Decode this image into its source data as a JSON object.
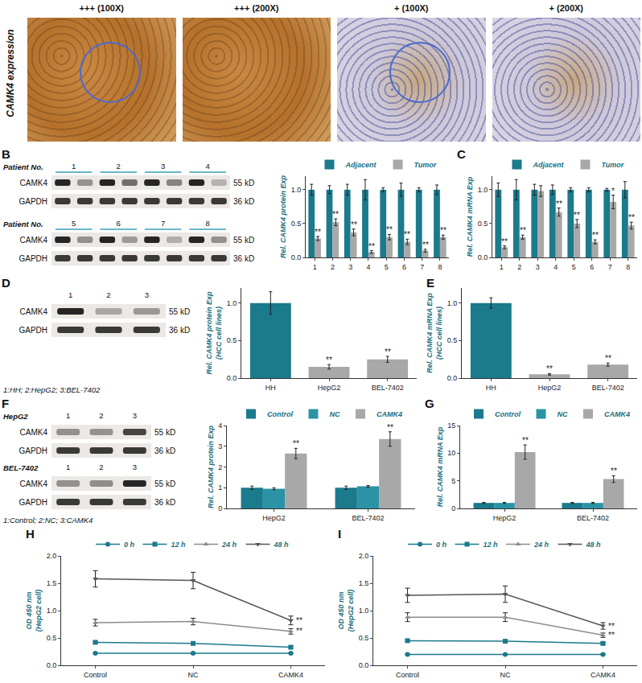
{
  "images": {
    "label": "CAMK4 expression",
    "titles": [
      "+++ (100X)",
      "+++ (200X)",
      "+ (100X)",
      "+ (200X)"
    ]
  },
  "blots": [
    {
      "panel": "B",
      "paired": true,
      "sets": [
        {
          "name": "Patient No.",
          "lanes": [
            "1",
            "2",
            "3",
            "4"
          ]
        },
        {
          "name": "Patient No.",
          "lanes": [
            "5",
            "6",
            "7",
            "8"
          ]
        }
      ],
      "rows": [
        {
          "label": "CAMK4",
          "size": "55 kD"
        },
        {
          "label": "GAPDH",
          "size": "36 kD"
        }
      ]
    },
    {
      "panel": "D",
      "sets": [
        {
          "lanes": [
            "1",
            "2",
            "3"
          ]
        }
      ],
      "rows": [
        {
          "label": "CAMK4",
          "size": "55 kD"
        },
        {
          "label": "GAPDH",
          "size": "36 kD"
        }
      ],
      "note": "1:HH; 2:HepG2; 3:BEL-7402"
    },
    {
      "panel": "F",
      "sets": [
        {
          "name": "HepG2",
          "lanes": [
            "1",
            "2",
            "3"
          ]
        },
        {
          "name": "BEL-7402",
          "lanes": [
            "1",
            "2",
            "3"
          ]
        }
      ],
      "rows": [
        {
          "label": "CAMK4",
          "size": "55 kD"
        },
        {
          "label": "GAPDH",
          "size": "36 kD"
        }
      ],
      "note": "1:Control; 2:NC; 3:CAMK4"
    }
  ],
  "chart_data": [
    {
      "panel": "B",
      "type": "bar",
      "y_label": "Rel. CAMK4 protein Exp",
      "categories": [
        "1",
        "2",
        "3",
        "4",
        "5",
        "6",
        "7",
        "8"
      ],
      "series": [
        {
          "name": "Adjacent",
          "color": "#1b7a8c",
          "values": [
            1,
            1,
            1,
            1,
            1,
            1,
            1,
            1
          ],
          "errors": [
            0.08,
            0.06,
            0.08,
            0.15,
            0.03,
            0.1,
            0.03,
            0.07
          ]
        },
        {
          "name": "Tumor",
          "color": "#a8a8a8",
          "values": [
            0.28,
            0.52,
            0.37,
            0.08,
            0.3,
            0.23,
            0.1,
            0.3
          ],
          "errors": [
            0.03,
            0.05,
            0.05,
            0.02,
            0.04,
            0.04,
            0.02,
            0.03
          ],
          "significance": [
            "**",
            "**",
            "**",
            "**",
            "**",
            "**",
            "**",
            "**"
          ]
        }
      ],
      "ylim": [
        0,
        1.2
      ],
      "yticks": [
        {
          "value": 0,
          "label": "0.0"
        },
        {
          "value": 0.5,
          "label": "0.5"
        },
        {
          "value": 1,
          "label": "1.0"
        }
      ],
      "legend": "top"
    },
    {
      "panel": "C",
      "type": "bar",
      "y_label": "Rel. CAMK4 mRNA Exp",
      "categories": [
        "1",
        "2",
        "3",
        "4",
        "5",
        "6",
        "7",
        "8"
      ],
      "series": [
        {
          "name": "Adjacent",
          "color": "#1b7a8c",
          "values": [
            1,
            1,
            1,
            1,
            1,
            1,
            1,
            1
          ],
          "errors": [
            0.1,
            0.15,
            0.08,
            0.07,
            0.03,
            0.03,
            0.02,
            0.12
          ]
        },
        {
          "name": "Tumor",
          "color": "#a8a8a8",
          "values": [
            0.15,
            0.3,
            0.98,
            0.67,
            0.5,
            0.23,
            0.82,
            0.47
          ],
          "errors": [
            0.02,
            0.03,
            0.08,
            0.06,
            0.06,
            0.03,
            0.1,
            0.05
          ],
          "significance": [
            "**",
            "**",
            null,
            "**",
            "**",
            "**",
            "*",
            "**"
          ]
        }
      ],
      "ylim": [
        0,
        1.2
      ],
      "yticks": [
        {
          "value": 0,
          "label": "0.0"
        },
        {
          "value": 0.5,
          "label": "0.5"
        },
        {
          "value": 1,
          "label": "1.0"
        }
      ],
      "legend": "top"
    },
    {
      "panel": "D",
      "type": "bar",
      "y_label": "Rel. CAMK4 protein Exp\n(HCC cell lines)",
      "categories": [
        "HH",
        "HepG2",
        "BEL-7402"
      ],
      "values": [
        1,
        0.15,
        0.25
      ],
      "errors": [
        0.15,
        0.03,
        0.04
      ],
      "colors": [
        "#1b7a8c",
        "#a8a8a8",
        "#a8a8a8"
      ],
      "significance": [
        null,
        "**",
        "**"
      ],
      "ylim": [
        0,
        1.2
      ],
      "yticks": [
        {
          "value": 0,
          "label": "0.0"
        },
        {
          "value": 0.5,
          "label": "0.5"
        },
        {
          "value": 1,
          "label": "1.0"
        }
      ]
    },
    {
      "panel": "E",
      "type": "bar",
      "y_label": "Rel. CAMK4 mRNA Exp\n(HCC cell lines)",
      "categories": [
        "HH",
        "HepG2",
        "BEL-7402"
      ],
      "values": [
        1,
        0.05,
        0.18
      ],
      "errors": [
        0.07,
        0.01,
        0.02
      ],
      "colors": [
        "#1b7a8c",
        "#a8a8a8",
        "#a8a8a8"
      ],
      "significance": [
        null,
        "**",
        "**"
      ],
      "ylim": [
        0,
        1.2
      ],
      "yticks": [
        {
          "value": 0,
          "label": "0.0"
        },
        {
          "value": 0.5,
          "label": "0.5"
        },
        {
          "value": 1,
          "label": "1.0"
        }
      ]
    },
    {
      "panel": "F",
      "type": "bar",
      "y_label": "Rel. CAMK4 protein Exp",
      "categories": [
        "HepG2",
        "BEL-7402"
      ],
      "series": [
        {
          "name": "Control",
          "color": "#1b7a8c",
          "values": [
            1,
            1
          ],
          "errors": [
            0.08,
            0.08
          ]
        },
        {
          "name": "NC",
          "color": "#2b93a5",
          "values": [
            0.95,
            1.07
          ],
          "errors": [
            0.05,
            0.04
          ]
        },
        {
          "name": "CAMK4",
          "color": "#a8a8a8",
          "values": [
            2.65,
            3.35
          ],
          "errors": [
            0.25,
            0.35
          ],
          "significance": [
            "**",
            "**"
          ]
        }
      ],
      "ylim": [
        0,
        4
      ],
      "yticks": [
        0,
        1,
        2,
        3,
        4
      ],
      "legend": "top"
    },
    {
      "panel": "G",
      "type": "bar",
      "y_label": "Rel. CAMK4 mRNA Exp",
      "categories": [
        "HepG2",
        "BEL-7402"
      ],
      "series": [
        {
          "name": "Control",
          "color": "#1b7a8c",
          "values": [
            1,
            1
          ],
          "errors": [
            0.1,
            0.1
          ]
        },
        {
          "name": "NC",
          "color": "#2b93a5",
          "values": [
            1,
            1
          ],
          "errors": [
            0.1,
            0.1
          ]
        },
        {
          "name": "CAMK4",
          "color": "#a8a8a8",
          "values": [
            10.2,
            5.3
          ],
          "errors": [
            1.3,
            0.6
          ],
          "significance": [
            "**",
            "**"
          ]
        }
      ],
      "ylim": [
        0,
        15
      ],
      "yticks": [
        0,
        5,
        10,
        15
      ],
      "legend": "top"
    },
    {
      "panel": "H",
      "type": "line",
      "y_label": "OD 450 nm\n(HepG2 cell)",
      "categories": [
        "Control",
        "NC",
        "CAMK4"
      ],
      "series": [
        {
          "name": "0 h",
          "color": "#1b7a8c",
          "marker": "circle",
          "values": [
            0.22,
            0.22,
            0.22
          ],
          "errors": [
            0.01,
            0.01,
            0.01
          ]
        },
        {
          "name": "12 h",
          "color": "#1b7a8c",
          "marker": "square",
          "values": [
            0.42,
            0.4,
            0.33
          ],
          "errors": [
            0.02,
            0.02,
            0.02
          ]
        },
        {
          "name": "24 h",
          "color": "#8c8c8c",
          "marker": "triangle-up",
          "values": [
            0.78,
            0.8,
            0.62
          ],
          "errors": [
            0.06,
            0.06,
            0.05
          ],
          "significance": [
            null,
            null,
            "**"
          ]
        },
        {
          "name": "48 h",
          "color": "#555555",
          "marker": "triangle-down",
          "values": [
            1.58,
            1.55,
            0.82
          ],
          "errors": [
            0.15,
            0.15,
            0.08
          ],
          "significance": [
            null,
            null,
            "**"
          ]
        }
      ],
      "ylim": [
        0,
        2
      ],
      "yticks": [
        {
          "value": 0,
          "label": "0.0"
        },
        {
          "value": 0.5,
          "label": "0.5"
        },
        {
          "value": 1,
          "label": "1.0"
        },
        {
          "value": 1.5,
          "label": "1.5"
        },
        {
          "value": 2,
          "label": "2.0"
        }
      ],
      "legend": "top"
    },
    {
      "panel": "I",
      "type": "line",
      "y_label": "OD 450 nm\n(HepG2 cell)",
      "categories": [
        "Control",
        "NC",
        "CAMK4"
      ],
      "series": [
        {
          "name": "0 h",
          "color": "#1b7a8c",
          "marker": "circle",
          "values": [
            0.2,
            0.2,
            0.2
          ],
          "errors": [
            0.01,
            0.01,
            0.01
          ]
        },
        {
          "name": "12 h",
          "color": "#1b7a8c",
          "marker": "square",
          "values": [
            0.45,
            0.44,
            0.4
          ],
          "errors": [
            0.02,
            0.02,
            0.02
          ]
        },
        {
          "name": "24 h",
          "color": "#8c8c8c",
          "marker": "triangle-up",
          "values": [
            0.88,
            0.88,
            0.55
          ],
          "errors": [
            0.08,
            0.08,
            0.04
          ],
          "significance": [
            null,
            null,
            "**"
          ]
        },
        {
          "name": "48 h",
          "color": "#555555",
          "marker": "triangle-down",
          "values": [
            1.28,
            1.3,
            0.72
          ],
          "errors": [
            0.13,
            0.15,
            0.06
          ],
          "significance": [
            null,
            null,
            "**"
          ]
        }
      ],
      "ylim": [
        0,
        2
      ],
      "yticks": [
        {
          "value": 0,
          "label": "0.0"
        },
        {
          "value": 0.5,
          "label": "0.5"
        },
        {
          "value": 1,
          "label": "1.0"
        },
        {
          "value": 1.5,
          "label": "1.5"
        },
        {
          "value": 2,
          "label": "2.0"
        }
      ],
      "legend": "top"
    }
  ]
}
